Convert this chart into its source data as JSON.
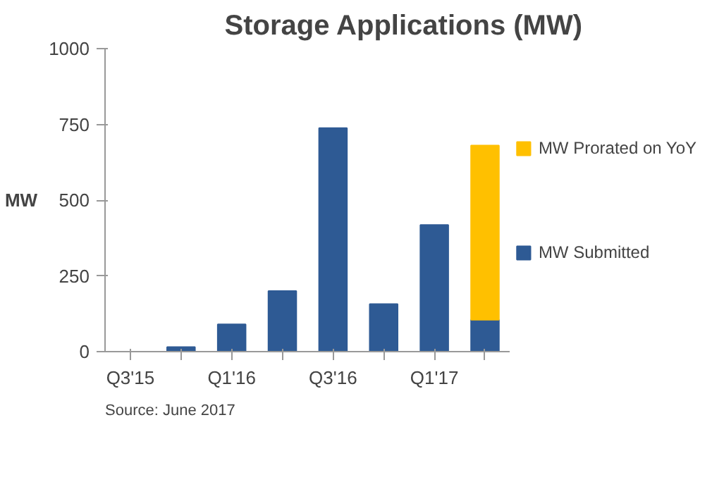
{
  "chart_data": {
    "type": "bar",
    "title": "Storage Applications (MW)",
    "ylabel": "MW",
    "categories": [
      "Q3'15",
      null,
      "Q1'16",
      null,
      "Q3'16",
      null,
      "Q1'17",
      null
    ],
    "stacked": true,
    "series": [
      {
        "name": "MW Submitted",
        "color": "#2e5a94",
        "values": [
          0,
          15,
          90,
          200,
          738,
          157,
          418,
          105
        ]
      },
      {
        "name": "MW Prorated on YoY",
        "color": "#ffc000",
        "values": [
          null,
          null,
          null,
          null,
          null,
          null,
          null,
          575
        ]
      }
    ],
    "ylim": [
      0,
      1000
    ],
    "yticks": [
      0,
      250,
      500,
      750,
      1000
    ],
    "grid": false,
    "legend": "right",
    "annotations": [
      "Source: June 2017"
    ]
  }
}
